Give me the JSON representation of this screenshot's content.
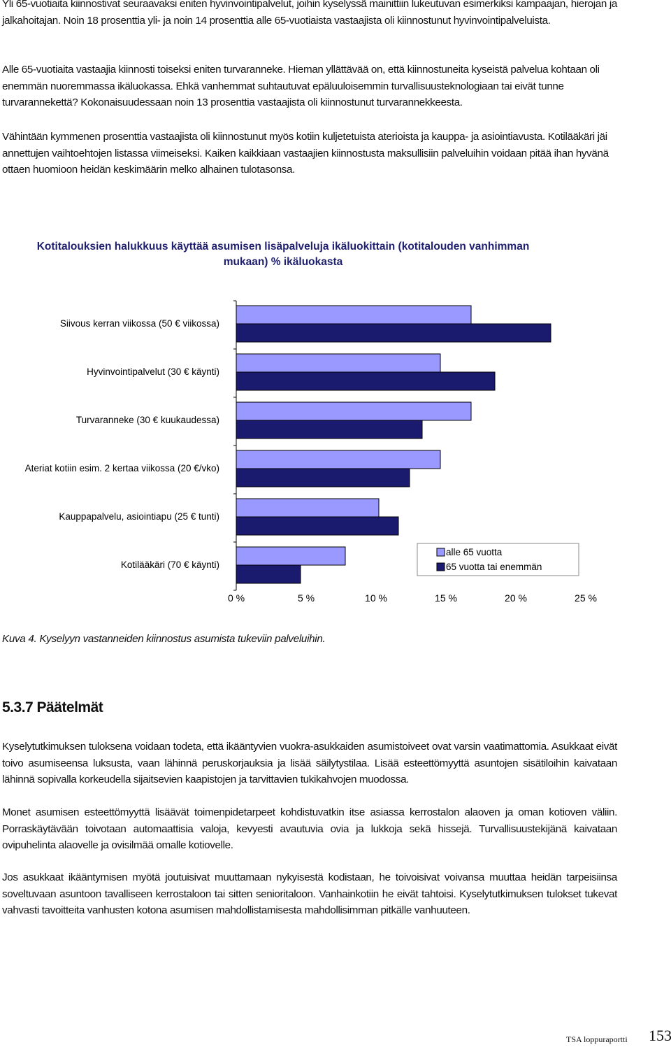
{
  "paragraphs_top": [
    "Yli 65-vuotiaita kiinnostivat seuraavaksi eniten hyvinvointipalvelut, joihin kyselyssä mainittiin lukeutuvan esimerkiksi kampaajan, hierojan ja jalkahoitajan. Noin 18 prosenttia yli- ja noin 14 prosenttia alle 65-vuotiaista vastaajista oli kiinnostunut hyvinvointipalveluista.",
    "Alle 65-vuotiaita vastaajia kiinnosti toiseksi eniten turvaranneke. Hieman yllättävää on, että kiinnostuneita kyseistä palvelua kohtaan oli enemmän nuoremmassa ikäluokassa. Ehkä vanhemmat suhtautuvat epäluuloisemmin turvallisuusteknologiaan tai eivät tunne turvarannekettä? Kokonaisuudessaan noin 13 prosenttia vastaajista oli kiinnostunut turvarannekkeesta.",
    "Vähintään kymmenen prosenttia vastaajista oli kiinnostunut myös kotiin kuljetetuista aterioista ja kauppa- ja asiointiavusta. Kotilääkäri jäi annettujen vaihtoehtojen listassa viimeiseksi. Kaiken kaikkiaan vastaajien kiinnostusta maksullisiin palveluihin voidaan pitää ihan hyvänä ottaen huomioon heidän keskimäärin melko alhainen tulotasonsa."
  ],
  "chart_data": {
    "type": "bar",
    "orientation": "horizontal",
    "title": "Kotitalouksien halukkuus käyttää asumisen lisäpalveluja ikäluokittain (kotitalouden vanhimman mukaan) % ikäluokasta",
    "categories": [
      "Siivous kerran viikossa (50 € viikossa)",
      "Hyvinvointipalvelut (30 € käynti)",
      "Turvaranneke (30 € kuukaudessa)",
      "Ateriat kotiin esim. 2 kertaa viikossa (20 €/vko)",
      "Kauppapalvelu, asiointiapu (25 € tunti)",
      "Kotilääkäri (70 € käynti)"
    ],
    "series": [
      {
        "name": "alle 65 vuotta",
        "values": [
          16.8,
          14.6,
          16.8,
          14.6,
          10.2,
          7.8
        ],
        "color": "#9999ff"
      },
      {
        "name": "65 vuotta tai enemmän",
        "values": [
          22.5,
          18.5,
          13.3,
          12.4,
          11.6,
          4.6
        ],
        "color": "#1a1a6e"
      }
    ],
    "xlim": [
      0,
      25
    ],
    "xticks": [
      "0 %",
      "5 %",
      "10 %",
      "15 %",
      "20 %",
      "25 %"
    ],
    "legend": "bottom-right",
    "grid": false
  },
  "caption": "Kuva 4. Kyselyyn vastanneiden kiinnostus asumista tukeviin palveluihin.",
  "section_heading": "5.3.7 Päätelmät",
  "paragraphs_bottom": [
    "Kyselytutkimuksen tuloksena voidaan todeta, että ikääntyvien vuokra-asukkaiden asumistoiveet ovat varsin vaatimattomia. Asukkaat eivät toivo asumiseensa luksusta, vaan lähinnä peruskorjauksia ja lisää säilytystilaa. Lisää esteettömyyttä asuntojen sisätiloihin kaivataan lähinnä sopivalla korkeudella sijaitsevien kaapistojen ja tarvittavien tukikahvojen muodossa.",
    "Monet asumisen esteettömyyttä lisäävät toimenpidetarpeet kohdistuvatkin itse asiassa kerrostalon alaoven ja oman kotioven väliin. Porraskäytävään toivotaan automaattisia valoja, kevyesti avautuvia ovia ja lukkoja sekä hissejä. Turvallisuustekijänä kaivataan ovipuhelinta alaovelle ja ovisilmää omalle kotiovelle.",
    "Jos asukkaat ikääntymisen myötä joutuisivat muuttamaan nykyisestä kodistaan, he toivoisivat voivansa muuttaa heidän tarpeisiinsa soveltuvaan asuntoon tavalliseen kerrostaloon tai sitten senioritaloon. Vanhainkotiin he eivät tahtoisi. Kyselytutkimuksen tulokset tukevat vahvasti tavoitteita vanhusten kotona asumisen mahdollistamisesta mahdollisimman pitkälle vanhuuteen."
  ],
  "footer": {
    "label": "TSA loppuraportti",
    "page": "153"
  }
}
